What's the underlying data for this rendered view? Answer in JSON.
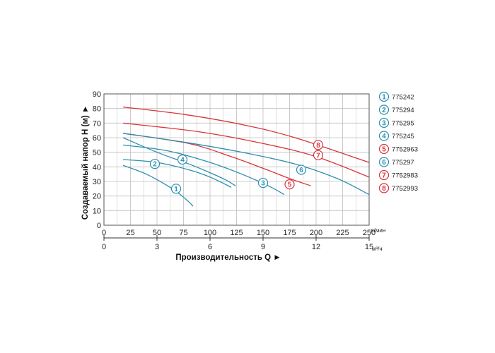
{
  "chart_data": {
    "type": "line",
    "ylabel": "Создаваемый напор H (м) ►",
    "xlabel": "Производительность Q ►",
    "y_ticks": [
      "0",
      "10",
      "20",
      "30",
      "40",
      "50",
      "60",
      "70",
      "80",
      "90"
    ],
    "ylim": [
      0,
      90
    ],
    "x_ticks_lmin": [
      "0",
      "25",
      "50",
      "75",
      "100",
      "125",
      "150",
      "175",
      "200",
      "225",
      "250"
    ],
    "x_unit_lmin": "л/мин",
    "xlim_lmin": [
      0,
      250
    ],
    "x_ticks_m3h": [
      "0",
      "3",
      "6",
      "9",
      "12",
      "15"
    ],
    "x_unit_m3h": "м³/ч",
    "xlim_m3h": [
      0,
      15
    ],
    "grid": true,
    "legend_position": "right",
    "colors": {
      "blue": "#2c8fb0",
      "red": "#d8343b"
    },
    "series": [
      {
        "name": "775242",
        "id": "1",
        "color": "blue",
        "badge_at": [
          68,
          25
        ],
        "x": [
          18,
          40,
          60,
          72,
          80,
          84
        ],
        "y": [
          41,
          35,
          27,
          21,
          16,
          13
        ]
      },
      {
        "name": "775294",
        "id": "2",
        "color": "blue",
        "badge_at": [
          48,
          42
        ],
        "x": [
          18,
          50,
          80,
          100,
          120
        ],
        "y": [
          45,
          43,
          38,
          33,
          26
        ]
      },
      {
        "name": "775295",
        "id": "3",
        "color": "blue",
        "badge_at": [
          150,
          29
        ],
        "x": [
          18,
          60,
          100,
          130,
          155,
          170
        ],
        "y": [
          55,
          51,
          43,
          35,
          27,
          21
        ]
      },
      {
        "name": "775245",
        "id": "4",
        "color": "blue",
        "badge_at": [
          74,
          45
        ],
        "x": [
          18,
          50,
          80,
          100,
          115,
          124
        ],
        "y": [
          60,
          50,
          42,
          36,
          31,
          27
        ]
      },
      {
        "name": "7752963",
        "id": "5",
        "color": "red",
        "badge_at": [
          175,
          28
        ],
        "x": [
          18,
          80,
          120,
          150,
          175,
          195
        ],
        "y": [
          63,
          56,
          47,
          39,
          32,
          27
        ]
      },
      {
        "name": "775297",
        "id": "6",
        "color": "blue",
        "badge_at": [
          186,
          38
        ],
        "x": [
          18,
          75,
          130,
          180,
          220,
          250
        ],
        "y": [
          63,
          57,
          50,
          42,
          32,
          21
        ]
      },
      {
        "name": "7752983",
        "id": "7",
        "color": "red",
        "badge_at": [
          202,
          48
        ],
        "x": [
          18,
          90,
          150,
          200,
          250
        ],
        "y": [
          70,
          64,
          56,
          47,
          33
        ]
      },
      {
        "name": "7752993",
        "id": "8",
        "color": "red",
        "badge_at": [
          202,
          55
        ],
        "x": [
          18,
          75,
          130,
          180,
          250
        ],
        "y": [
          81,
          76,
          69,
          60,
          43
        ]
      }
    ]
  }
}
